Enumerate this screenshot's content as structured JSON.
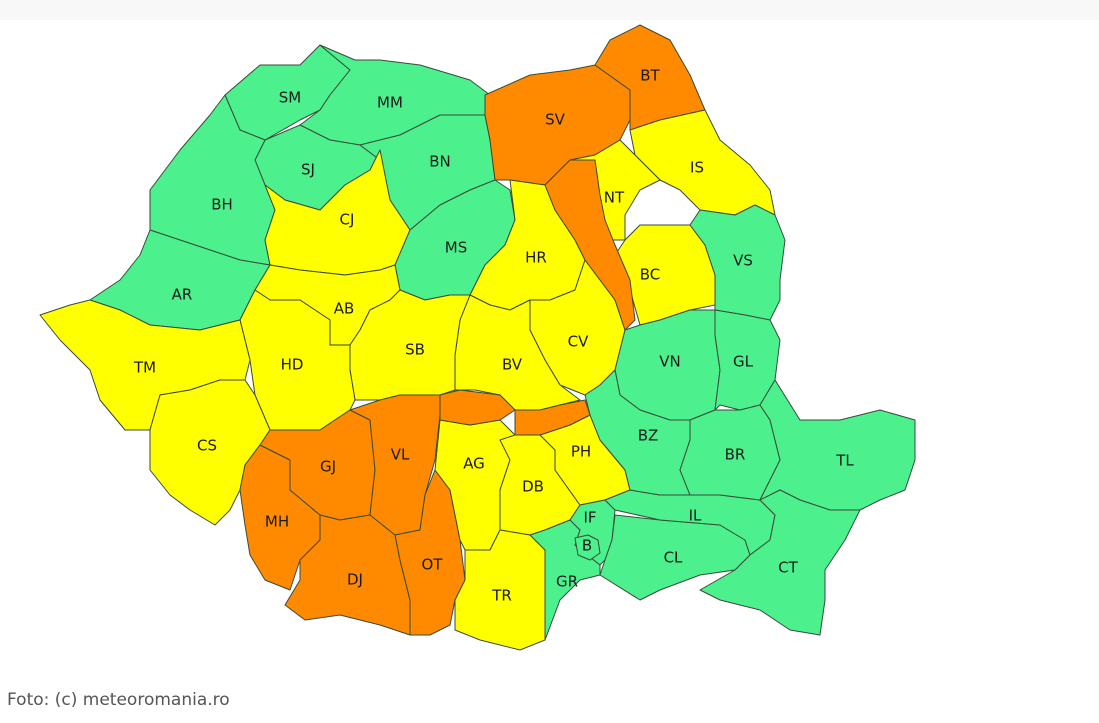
{
  "caption": "Foto: (c) meteoromania.ro",
  "colors": {
    "green": "#4cf08c",
    "yellow": "#ffff00",
    "orange": "#ff8a00",
    "border": "#3a4a3a"
  },
  "counties": [
    {
      "code": "SM",
      "level": "green"
    },
    {
      "code": "MM",
      "level": "green"
    },
    {
      "code": "SJ",
      "level": "green"
    },
    {
      "code": "BN",
      "level": "green"
    },
    {
      "code": "BH",
      "level": "green"
    },
    {
      "code": "AR",
      "level": "green"
    },
    {
      "code": "CJ",
      "level": "yellow"
    },
    {
      "code": "MS",
      "level": "green"
    },
    {
      "code": "SV",
      "level": "orange"
    },
    {
      "code": "BT",
      "level": "orange"
    },
    {
      "code": "IS",
      "level": "yellow"
    },
    {
      "code": "NT",
      "level": "yellow"
    },
    {
      "code": "BC",
      "level": "yellow"
    },
    {
      "code": "VS",
      "level": "green"
    },
    {
      "code": "HR",
      "level": "yellow"
    },
    {
      "code": "CV",
      "level": "yellow"
    },
    {
      "code": "BV",
      "level": "yellow"
    },
    {
      "code": "AB",
      "level": "yellow"
    },
    {
      "code": "SB",
      "level": "yellow"
    },
    {
      "code": "HD",
      "level": "yellow"
    },
    {
      "code": "TM",
      "level": "yellow"
    },
    {
      "code": "CS",
      "level": "yellow"
    },
    {
      "code": "MH",
      "level": "orange"
    },
    {
      "code": "GJ",
      "level": "orange"
    },
    {
      "code": "VL",
      "level": "orange"
    },
    {
      "code": "DJ",
      "level": "orange"
    },
    {
      "code": "OT",
      "level": "orange"
    },
    {
      "code": "AG",
      "level": "yellow"
    },
    {
      "code": "DB",
      "level": "yellow"
    },
    {
      "code": "PH",
      "level": "yellow"
    },
    {
      "code": "TR",
      "level": "yellow"
    },
    {
      "code": "GR",
      "level": "green"
    },
    {
      "code": "IF",
      "level": "green"
    },
    {
      "code": "B",
      "level": "green"
    },
    {
      "code": "CL",
      "level": "green"
    },
    {
      "code": "IL",
      "level": "green"
    },
    {
      "code": "VN",
      "level": "green"
    },
    {
      "code": "GL",
      "level": "green"
    },
    {
      "code": "BZ",
      "level": "green"
    },
    {
      "code": "BR",
      "level": "green"
    },
    {
      "code": "TL",
      "level": "green"
    },
    {
      "code": "CT",
      "level": "green"
    }
  ],
  "extra_zones": [
    {
      "zone": "eastern-carpathians",
      "level": "orange"
    },
    {
      "zone": "northern-arges",
      "level": "orange"
    },
    {
      "zone": "northern-prahova",
      "level": "orange"
    }
  ]
}
